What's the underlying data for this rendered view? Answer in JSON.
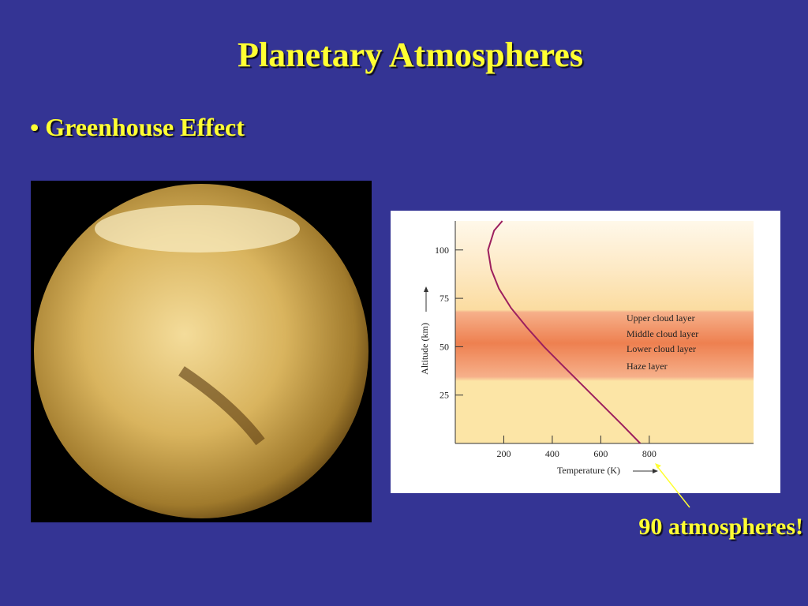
{
  "title": "Planetary Atmospheres",
  "bullet": "• Greenhouse Effect",
  "annotation": "90 atmospheres!",
  "chart_data": {
    "type": "line",
    "x_label": "Temperature (K)",
    "y_label": "Altitude (km)",
    "x": [
      763,
      685,
      605,
      525,
      445,
      366,
      295,
      230,
      180,
      148,
      135,
      160,
      194
    ],
    "series": [
      {
        "name": "Temperature profile",
        "color": "#9c1f5e",
        "values": [
          0,
          10,
          20,
          30,
          40,
          50,
          60,
          70,
          80,
          90,
          100,
          110,
          115
        ]
      }
    ],
    "xlim": [
      0,
      1230
    ],
    "ylim": [
      0,
      115
    ],
    "xticks": [
      200,
      400,
      600,
      800
    ],
    "yticks": [
      25,
      50,
      75,
      100
    ],
    "layers": [
      "Upper cloud layer",
      "Middle cloud layer",
      "Lower cloud layer",
      "Haze layer"
    ]
  }
}
